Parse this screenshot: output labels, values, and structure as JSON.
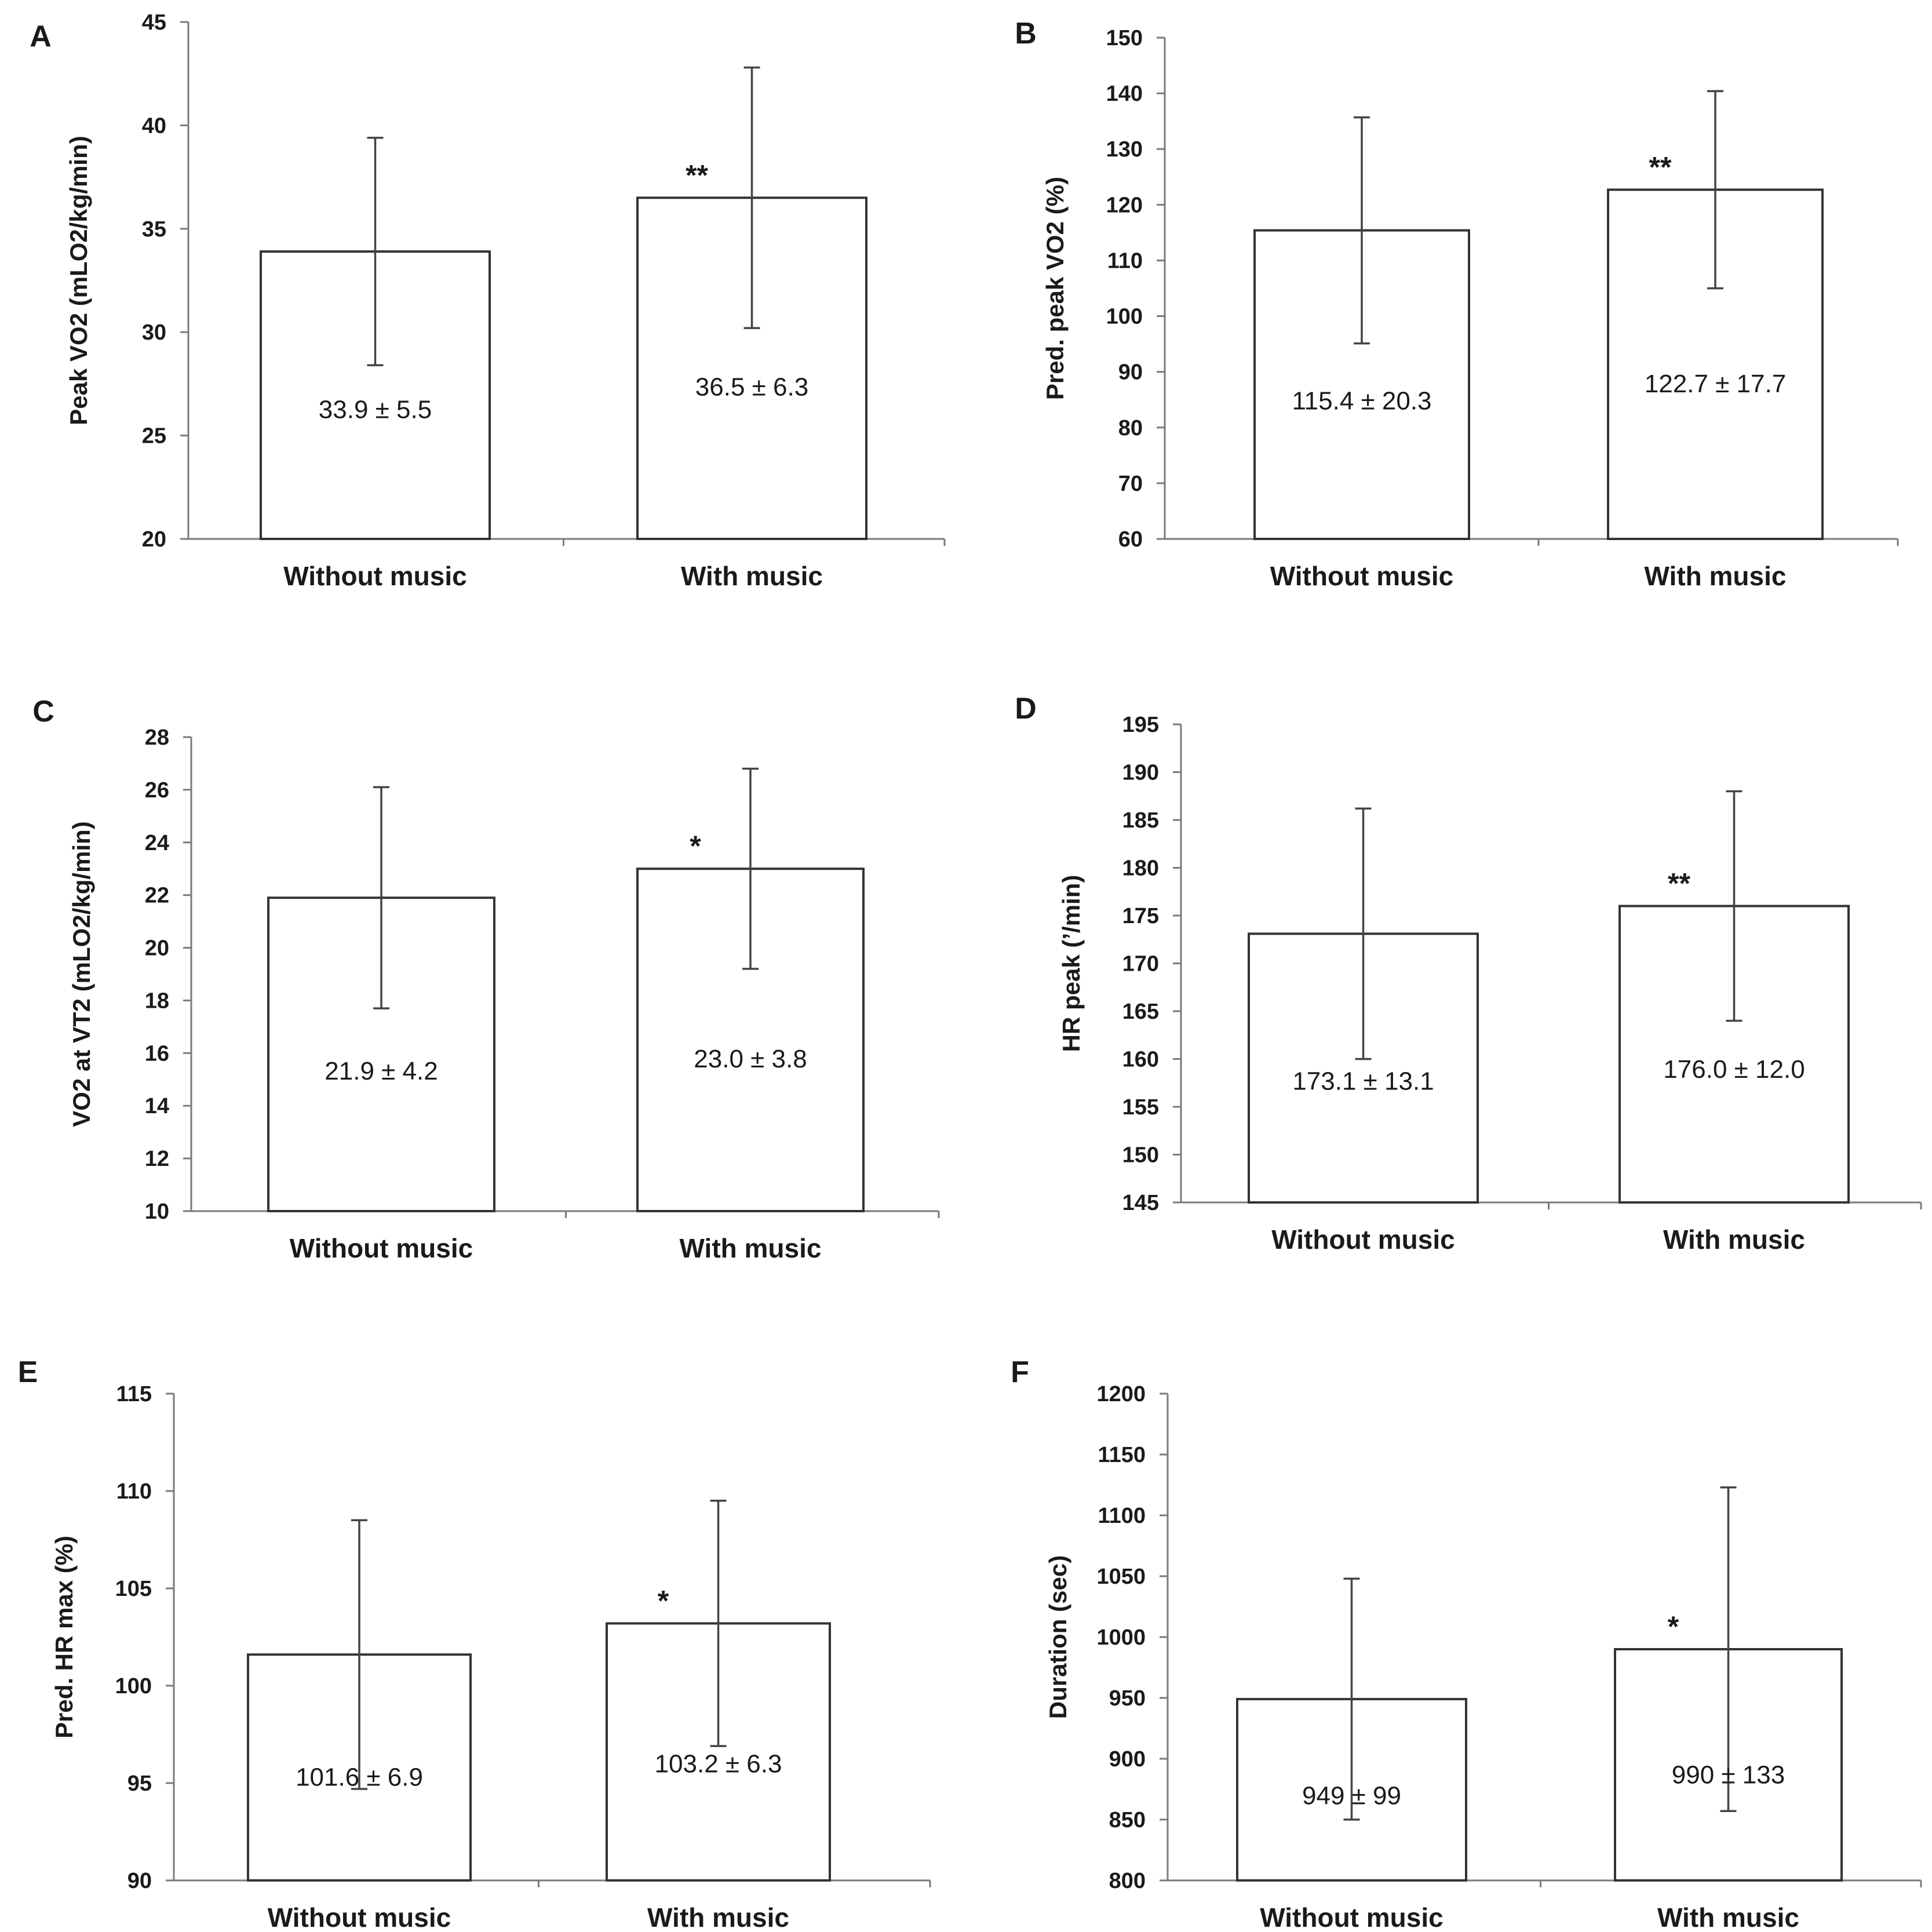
{
  "figure": {
    "categories": [
      "Without music",
      "With music"
    ]
  },
  "chart_data": [
    {
      "panel": "A",
      "type": "bar",
      "ylabel": "Peak VO2 (mLO2/kg/min)",
      "ylim": [
        20,
        45
      ],
      "yticks": [
        20,
        25,
        30,
        35,
        40,
        45
      ],
      "categories": [
        "Without music",
        "With music"
      ],
      "values": [
        33.9,
        36.5
      ],
      "error": [
        5.5,
        6.3
      ],
      "value_labels": [
        "33.9 ± 5.5",
        "36.5 ± 6.3"
      ],
      "significance": [
        "",
        "**"
      ]
    },
    {
      "panel": "B",
      "type": "bar",
      "ylabel": "Pred. peak VO2 (%)",
      "ylim": [
        60,
        150
      ],
      "yticks": [
        60,
        70,
        80,
        90,
        100,
        110,
        120,
        130,
        140,
        150
      ],
      "categories": [
        "Without music",
        "With music"
      ],
      "values": [
        115.4,
        122.7
      ],
      "error": [
        20.3,
        17.7
      ],
      "value_labels": [
        "115.4 ± 20.3",
        "122.7 ± 17.7"
      ],
      "significance": [
        "",
        "**"
      ]
    },
    {
      "panel": "C",
      "type": "bar",
      "ylabel": "VO2 at VT2 (mLO2/kg/min)",
      "ylim": [
        10,
        28
      ],
      "yticks": [
        10,
        12,
        14,
        16,
        18,
        20,
        22,
        24,
        26,
        28
      ],
      "categories": [
        "Without music",
        "With music"
      ],
      "values": [
        21.9,
        23.0
      ],
      "error": [
        4.2,
        3.8
      ],
      "value_labels": [
        "21.9 ± 4.2",
        "23.0 ± 3.8"
      ],
      "significance": [
        "",
        "*"
      ]
    },
    {
      "panel": "D",
      "type": "bar",
      "ylabel": "HR peak (’/min)",
      "ylim": [
        145,
        195
      ],
      "yticks": [
        145,
        150,
        155,
        160,
        165,
        170,
        175,
        180,
        185,
        190,
        195
      ],
      "categories": [
        "Without music",
        "With music"
      ],
      "values": [
        173.1,
        176.0
      ],
      "error": [
        13.1,
        12.0
      ],
      "value_labels": [
        "173.1 ± 13.1",
        "176.0 ± 12.0"
      ],
      "significance": [
        "",
        "**"
      ]
    },
    {
      "panel": "E",
      "type": "bar",
      "ylabel": "Pred. HR max (%)",
      "ylim": [
        90,
        115
      ],
      "yticks": [
        90,
        95,
        100,
        105,
        110,
        115
      ],
      "categories": [
        "Without music",
        "With music"
      ],
      "values": [
        101.6,
        103.2
      ],
      "error": [
        6.9,
        6.3
      ],
      "value_labels": [
        "101.6 ± 6.9",
        "103.2 ± 6.3"
      ],
      "significance": [
        "",
        "*"
      ]
    },
    {
      "panel": "F",
      "type": "bar",
      "ylabel": "Duration (sec)",
      "ylim": [
        800,
        1200
      ],
      "yticks": [
        800,
        850,
        900,
        950,
        1000,
        1050,
        1100,
        1150,
        1200
      ],
      "categories": [
        "Without music",
        "With music"
      ],
      "values": [
        949,
        990
      ],
      "error": [
        99,
        133
      ],
      "value_labels": [
        "949 ± 99",
        "990 ± 133"
      ],
      "significance": [
        "",
        "*"
      ]
    }
  ]
}
